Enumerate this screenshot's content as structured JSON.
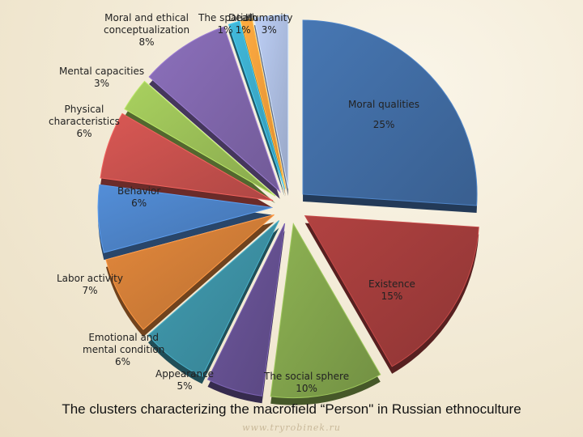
{
  "chart_data": {
    "type": "pie",
    "title": "The clusters characterizing the macrofield “Person\" in Russian ethnoculture",
    "slices": [
      {
        "name": "Moral qualities",
        "pct": "25%",
        "value": 25,
        "color": "#3f6aa0"
      },
      {
        "name": "Existence",
        "pct": "15%",
        "value": 15,
        "color": "#9e3b3a"
      },
      {
        "name": "The social sphere",
        "pct": "10%",
        "value": 10,
        "color": "#7fa04a"
      },
      {
        "name": "Appearance",
        "pct": "5%",
        "value": 5,
        "color": "#634f8e"
      },
      {
        "name": "Emotional and mental condition",
        "pct": "6%",
        "value": 6,
        "color": "#3b8da0"
      },
      {
        "name": "Labor activity",
        "pct": "7%",
        "value": 7,
        "color": "#cc7a36"
      },
      {
        "name": "Behavior",
        "pct": "6%",
        "value": 6,
        "color": "#4a7fc1"
      },
      {
        "name": "Physical characteristics",
        "pct": "6%",
        "value": 6,
        "color": "#c24f4b"
      },
      {
        "name": "Mental capacities",
        "pct": "3%",
        "value": 3,
        "color": "#97bb55"
      },
      {
        "name": "Moral and ethical conceptualization",
        "pct": "8%",
        "value": 8,
        "color": "#7d64a8"
      },
      {
        "name": "The spatial",
        "pct": "1%",
        "value": 1,
        "color": "#3aa6c4"
      },
      {
        "name": "Death",
        "pct": "1%",
        "value": 1,
        "color": "#f29a3a"
      },
      {
        "name": "Humanity",
        "pct": "3%",
        "value": 3,
        "color": "#a9b9dc"
      }
    ]
  },
  "labels": {
    "moral_qualities": {
      "line1": "Moral qualities",
      "pct": "25%"
    },
    "existence": {
      "line1": "Existence",
      "pct": "15%"
    },
    "social": {
      "line1": "The social sphere",
      "pct": "10%"
    },
    "appearance": {
      "line1": "Appearance",
      "pct": "5%"
    },
    "emotional": {
      "line1": "Emotional and",
      "line2": "mental condition",
      "pct": "6%"
    },
    "labor": {
      "line1": "Labor activity",
      "pct": "7%"
    },
    "behavior": {
      "line1": "Behavior",
      "pct": "6%"
    },
    "physical": {
      "line1": "Physical",
      "line2": "characteristics",
      "pct": "6%"
    },
    "mental": {
      "line1": "Mental capacities",
      "pct": "3%"
    },
    "moral_ethical": {
      "line1": "Moral and ethical",
      "line2": "conceptualization",
      "pct": "8%"
    },
    "spatial": {
      "line1": "The spatial",
      "pct": "1%"
    },
    "death": {
      "line1": "Death",
      "pct": "1%"
    },
    "humanity": {
      "line1": "Humanity",
      "pct": "3%"
    }
  },
  "footer": {
    "site": "www.tryrobinek.ru"
  }
}
